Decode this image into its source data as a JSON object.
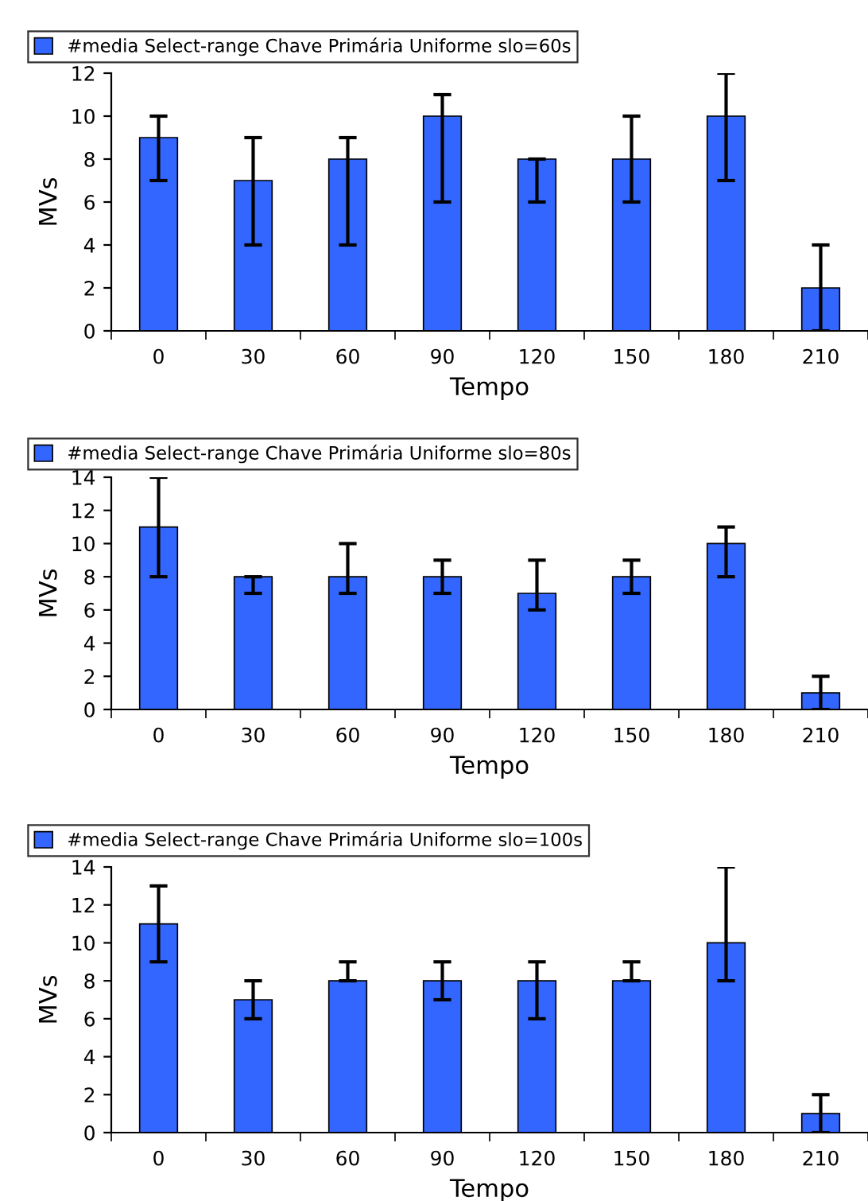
{
  "chart_data": [
    {
      "type": "bar",
      "xlabel": "Tempo",
      "ylabel": "MVs",
      "categories": [
        "0",
        "30",
        "60",
        "90",
        "120",
        "150",
        "180",
        "210"
      ],
      "legend": "top left",
      "ylim": [
        0,
        12
      ],
      "yticks": [
        0,
        2,
        4,
        6,
        8,
        10,
        12
      ],
      "series": [
        {
          "name": "#media Select-range Chave Primária Uniforme slo=60s",
          "color": "#3366ff",
          "values": [
            9,
            7,
            8,
            10,
            8,
            8,
            10,
            2
          ],
          "errors": [
            [
              7,
              10
            ],
            [
              4,
              9
            ],
            [
              4,
              9
            ],
            [
              6,
              11
            ],
            [
              6,
              8
            ],
            [
              6,
              10
            ],
            [
              7,
              12
            ],
            [
              0,
              4
            ]
          ]
        }
      ]
    },
    {
      "type": "bar",
      "xlabel": "Tempo",
      "ylabel": "MVs",
      "categories": [
        "0",
        "30",
        "60",
        "90",
        "120",
        "150",
        "180",
        "210"
      ],
      "legend": "top left",
      "ylim": [
        0,
        14
      ],
      "yticks": [
        0,
        2,
        4,
        6,
        8,
        10,
        12,
        14
      ],
      "series": [
        {
          "name": "#media Select-range Chave Primária Uniforme slo=80s",
          "color": "#3366ff",
          "values": [
            11,
            8,
            8,
            8,
            7,
            8,
            10,
            1
          ],
          "errors": [
            [
              8,
              14
            ],
            [
              7,
              8
            ],
            [
              7,
              10
            ],
            [
              7,
              9
            ],
            [
              6,
              9
            ],
            [
              7,
              9
            ],
            [
              8,
              11
            ],
            [
              0,
              2
            ]
          ]
        }
      ]
    },
    {
      "type": "bar",
      "xlabel": "Tempo",
      "ylabel": "MVs",
      "categories": [
        "0",
        "30",
        "60",
        "90",
        "120",
        "150",
        "180",
        "210"
      ],
      "legend": "top left",
      "ylim": [
        0,
        14
      ],
      "yticks": [
        0,
        2,
        4,
        6,
        8,
        10,
        12,
        14
      ],
      "series": [
        {
          "name": "#media Select-range Chave Primária Uniforme slo=100s",
          "color": "#3366ff",
          "values": [
            11,
            7,
            8,
            8,
            8,
            8,
            10,
            1
          ],
          "errors": [
            [
              9,
              13
            ],
            [
              6,
              8
            ],
            [
              8,
              9
            ],
            [
              7,
              9
            ],
            [
              6,
              9
            ],
            [
              8,
              9
            ],
            [
              8,
              14
            ],
            [
              0,
              2
            ]
          ]
        }
      ]
    }
  ]
}
